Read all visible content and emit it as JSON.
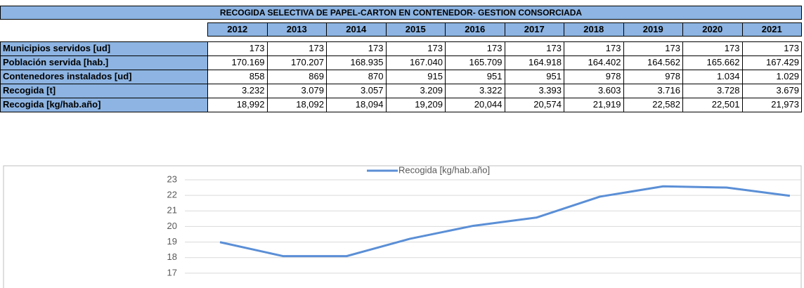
{
  "table": {
    "title": "RECOGIDA SELECTIVA DE PAPEL-CARTON EN CONTENEDOR- GESTION CONSORCIADA",
    "header": [
      "2012",
      "2013",
      "2014",
      "2015",
      "2016",
      "2017",
      "2018",
      "2019",
      "2020",
      "2021"
    ],
    "rows": [
      [
        "Municipios servidos [ud]",
        "173",
        "173",
        "173",
        "173",
        "173",
        "173",
        "173",
        "173",
        "173",
        "173"
      ],
      [
        "Población servida [hab.]",
        "170.169",
        "170.207",
        "168.935",
        "167.040",
        "165.709",
        "164.918",
        "164.402",
        "164.562",
        "165.662",
        "167.429"
      ],
      [
        "Contenedores instalados [ud]",
        "858",
        "869",
        "870",
        "915",
        "951",
        "951",
        "978",
        "978",
        "1.034",
        "1.029"
      ],
      [
        "Recogida [t]",
        "3.232",
        "3.079",
        "3.057",
        "3.209",
        "3.322",
        "3.393",
        "3.603",
        "3.716",
        "3.728",
        "3.679"
      ],
      [
        "Recogida [kg/hab.año]",
        "18,992",
        "18,092",
        "18,094",
        "19,209",
        "20,044",
        "20,574",
        "21,919",
        "22,582",
        "22,501",
        "21,973"
      ]
    ]
  },
  "chart_data": {
    "type": "line",
    "series": [
      {
        "name": "Recogida [kg/hab.año]",
        "color": "#5b8fd6",
        "values": [
          18.992,
          18.092,
          18.094,
          19.209,
          20.044,
          20.574,
          21.919,
          22.582,
          22.501,
          21.973
        ]
      }
    ],
    "ylim": [
      16,
      23
    ],
    "yticks": [
      17,
      18,
      19,
      20,
      21,
      22,
      23
    ],
    "grid": true
  }
}
